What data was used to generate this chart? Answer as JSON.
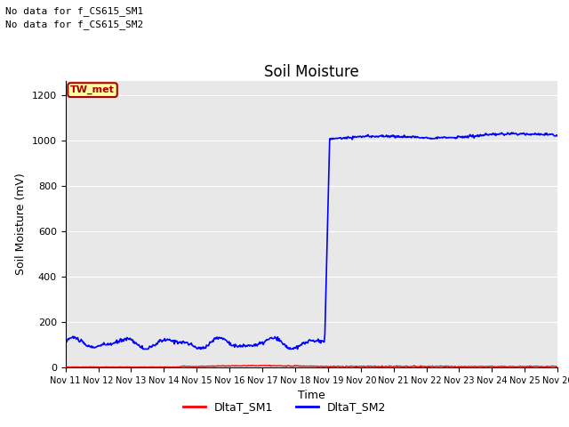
{
  "title": "Soil Moisture",
  "ylabel": "Soil Moisture (mV)",
  "xlabel": "Time",
  "ylim": [
    0,
    1260
  ],
  "yticks": [
    0,
    200,
    400,
    600,
    800,
    1000,
    1200
  ],
  "x_tick_labels": [
    "Nov 11",
    "Nov 12",
    "Nov 13",
    "Nov 14",
    "Nov 15",
    "Nov 16",
    "Nov 17",
    "Nov 18",
    "Nov 19",
    "Nov 20",
    "Nov 21",
    "Nov 22",
    "Nov 23",
    "Nov 24",
    "Nov 25",
    "Nov 26"
  ],
  "annotation1": "No data for f_CS615_SM1",
  "annotation2": "No data for f_CS615_SM2",
  "legend_box_label": "TW_met",
  "legend_box_bg": "#FFFFA0",
  "legend_box_edge": "#AA0000",
  "legend_box_text": "#AA0000",
  "sm1_color": "#FF0000",
  "sm2_color": "#0000FF",
  "sm1_label": "DltaT_SM1",
  "sm2_label": "DltaT_SM2",
  "bg_color": "#E8E8E8",
  "fig_bg": "#FFFFFF",
  "title_fontsize": 12,
  "axis_fontsize": 9,
  "annotation_fontsize": 8,
  "tick_fontsize": 8
}
